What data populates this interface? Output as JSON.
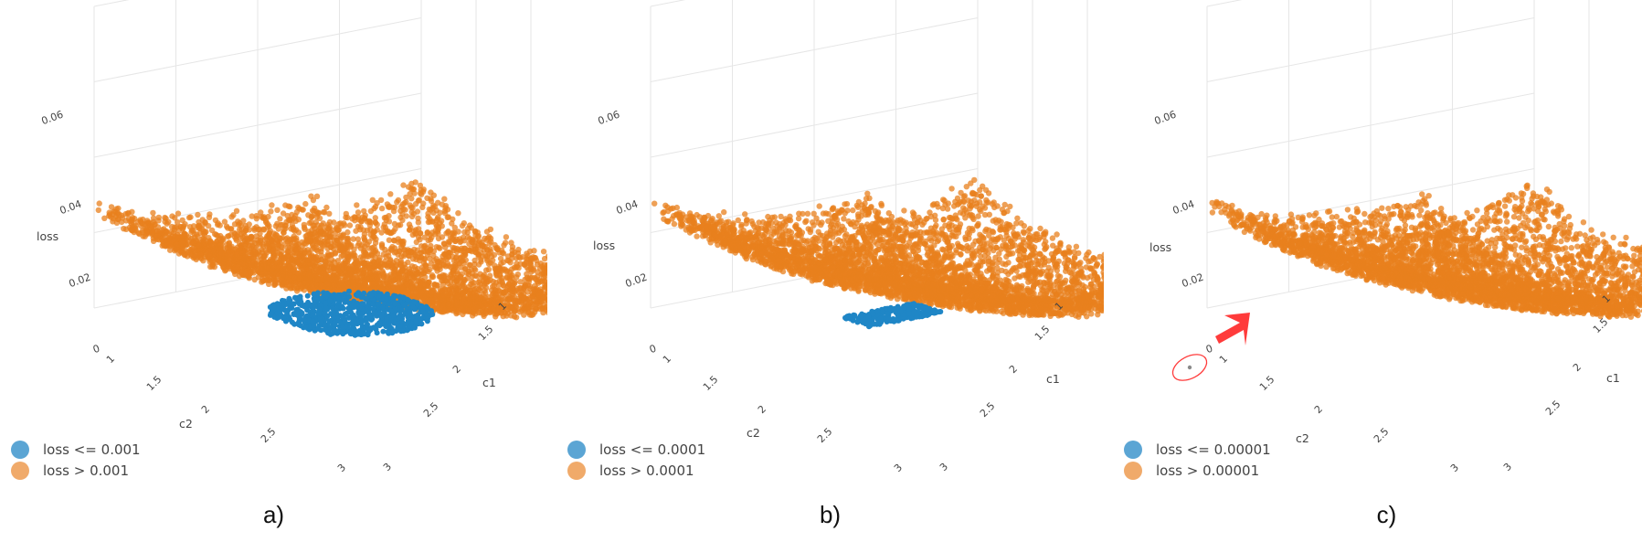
{
  "colors": {
    "low": "#1f86c6",
    "high": "#e8801e",
    "legend_low": "#5ba5d4",
    "legend_high": "#f0aa6a",
    "marker": "#ff3b3b"
  },
  "chart_data": [
    {
      "type": "scatter3d",
      "panel_label": "a)",
      "xlabel": "c1",
      "ylabel": "c2",
      "zlabel": "loss",
      "x_ticks": [
        "1",
        "1.5",
        "2",
        "2.5",
        "3"
      ],
      "y_ticks": [
        "1",
        "1.5",
        "2",
        "2.5",
        "3"
      ],
      "z_ticks": [
        "0",
        "0.02",
        "0.04",
        "0.06"
      ],
      "threshold": 0.001,
      "series": [
        {
          "name": "loss <= 0.001",
          "color": "#1f86c6"
        },
        {
          "name": "loss > 0.001",
          "color": "#e8801e"
        }
      ]
    },
    {
      "type": "scatter3d",
      "panel_label": "b)",
      "xlabel": "c1",
      "ylabel": "c2",
      "zlabel": "loss",
      "x_ticks": [
        "1",
        "1.5",
        "2",
        "2.5",
        "3"
      ],
      "y_ticks": [
        "1",
        "1.5",
        "2",
        "2.5",
        "3"
      ],
      "z_ticks": [
        "0",
        "0.02",
        "0.04",
        "0.06"
      ],
      "threshold": 0.0001,
      "series": [
        {
          "name": "loss <= 0.0001",
          "color": "#1f86c6"
        },
        {
          "name": "loss > 0.0001",
          "color": "#e8801e"
        }
      ]
    },
    {
      "type": "scatter3d",
      "panel_label": "c)",
      "xlabel": "c1",
      "ylabel": "c2",
      "zlabel": "loss",
      "x_ticks": [
        "1",
        "1.5",
        "2",
        "2.5",
        "3"
      ],
      "y_ticks": [
        "1",
        "1.5",
        "2",
        "2.5",
        "3"
      ],
      "z_ticks": [
        "0",
        "0.02",
        "0.04",
        "0.06"
      ],
      "threshold": 1e-05,
      "annotation": "arrow-and-ellipse-marking-minimum",
      "series": [
        {
          "name": "loss <= 0.00001",
          "color": "#1f86c6"
        },
        {
          "name": "loss > 0.00001",
          "color": "#e8801e"
        }
      ]
    }
  ]
}
